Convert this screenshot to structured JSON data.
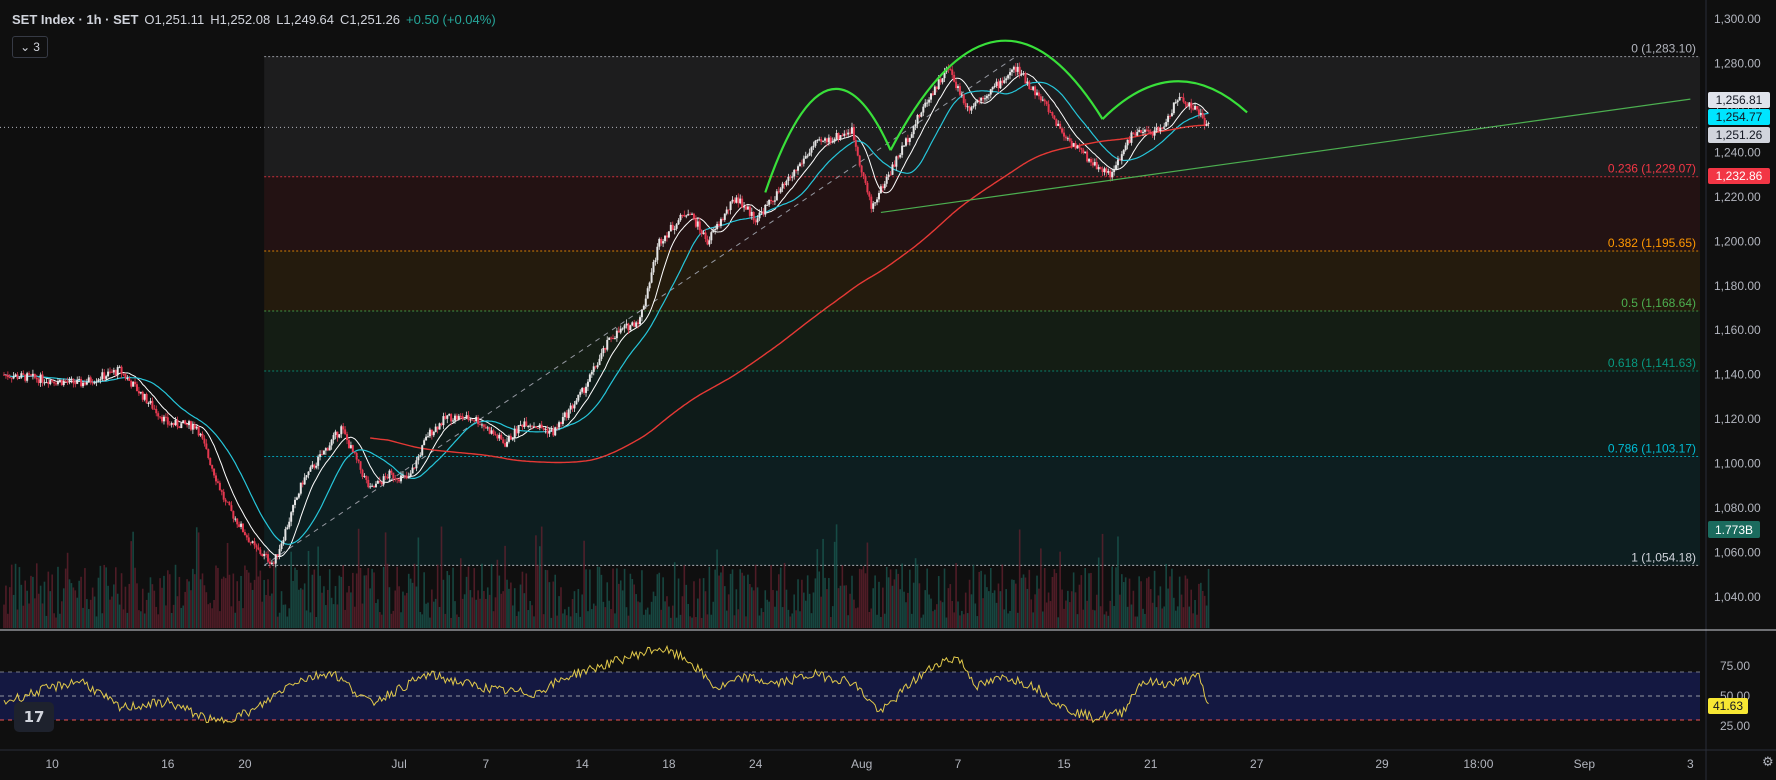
{
  "header": {
    "symbol": "SET Index · 1h · SET",
    "open": "O1,251.11",
    "high": "H1,252.08",
    "low": "L1,249.64",
    "close": "C1,251.26",
    "change": "+0.50 (+0.04%)",
    "indicator_count": "3"
  },
  "chart_data": {
    "type": "candlestick",
    "title": "SET Index · 1h · SET",
    "price_axis": {
      "range": [
        1026,
        1305
      ],
      "ticks": [
        "1,300.00",
        "1,280.00",
        "1,260.00",
        "1,240.00",
        "1,220.00",
        "1,200.00",
        "1,180.00",
        "1,160.00",
        "1,140.00",
        "1,120.00",
        "1,100.00",
        "1,080.00",
        "1,060.00",
        "1,040.00"
      ],
      "tick_values": [
        1300,
        1280,
        1260,
        1240,
        1220,
        1200,
        1180,
        1160,
        1140,
        1120,
        1100,
        1080,
        1060,
        1040
      ]
    },
    "time_axis": {
      "labels": [
        "10",
        "16",
        "20",
        "Jul",
        "7",
        "14",
        "18",
        "24",
        "Aug",
        "7",
        "15",
        "21",
        "27",
        "29",
        "18:00",
        "Sep",
        "3"
      ],
      "label_index": [
        5,
        17,
        25,
        41,
        50,
        60,
        69,
        78,
        89,
        99,
        110,
        119,
        130,
        143,
        153,
        164,
        175
      ],
      "total_index": 176,
      "last_bar_index": 125
    },
    "key_points": [
      {
        "i": 0,
        "p": 1140
      },
      {
        "i": 8,
        "p": 1136
      },
      {
        "i": 12,
        "p": 1142
      },
      {
        "i": 17,
        "p": 1118
      },
      {
        "i": 20,
        "p": 1117
      },
      {
        "i": 23,
        "p": 1082
      },
      {
        "i": 26,
        "p": 1062
      },
      {
        "i": 28,
        "p": 1055
      },
      {
        "i": 31,
        "p": 1092
      },
      {
        "i": 35,
        "p": 1116
      },
      {
        "i": 38,
        "p": 1088
      },
      {
        "i": 40,
        "p": 1095
      },
      {
        "i": 42,
        "p": 1093
      },
      {
        "i": 44,
        "p": 1113
      },
      {
        "i": 46,
        "p": 1121
      },
      {
        "i": 49,
        "p": 1120
      },
      {
        "i": 52,
        "p": 1109
      },
      {
        "i": 54,
        "p": 1119
      },
      {
        "i": 57,
        "p": 1114
      },
      {
        "i": 60,
        "p": 1132
      },
      {
        "i": 63,
        "p": 1157
      },
      {
        "i": 66,
        "p": 1165
      },
      {
        "i": 68,
        "p": 1200
      },
      {
        "i": 71,
        "p": 1214
      },
      {
        "i": 73,
        "p": 1200
      },
      {
        "i": 76,
        "p": 1220
      },
      {
        "i": 78,
        "p": 1210
      },
      {
        "i": 81,
        "p": 1225
      },
      {
        "i": 84,
        "p": 1243
      },
      {
        "i": 88,
        "p": 1250
      },
      {
        "i": 90,
        "p": 1215
      },
      {
        "i": 93,
        "p": 1240
      },
      {
        "i": 96,
        "p": 1265
      },
      {
        "i": 98,
        "p": 1278
      },
      {
        "i": 100,
        "p": 1260
      },
      {
        "i": 103,
        "p": 1270
      },
      {
        "i": 105,
        "p": 1278
      },
      {
        "i": 108,
        "p": 1262
      },
      {
        "i": 110,
        "p": 1248
      },
      {
        "i": 113,
        "p": 1235
      },
      {
        "i": 115,
        "p": 1230
      },
      {
        "i": 117,
        "p": 1248
      },
      {
        "i": 120,
        "p": 1250
      },
      {
        "i": 122,
        "p": 1265
      },
      {
        "i": 124,
        "p": 1258
      },
      {
        "i": 125,
        "p": 1251.26
      }
    ],
    "fibonacci": {
      "start_index": 27,
      "levels": [
        {
          "label": "0 (1,283.10)",
          "value": 1283.1,
          "color": "#b2b5be"
        },
        {
          "label": "0.236 (1,229.07)",
          "value": 1229.07,
          "color": "#f23645"
        },
        {
          "label": "0.382 (1,195.65)",
          "value": 1195.65,
          "color": "#ff9800"
        },
        {
          "label": "0.5 (1,168.64)",
          "value": 1168.64,
          "color": "#4caf50"
        },
        {
          "label": "0.618 (1,141.63)",
          "value": 1141.63,
          "color": "#089981"
        },
        {
          "label": "0.786 (1,103.17)",
          "value": 1103.17,
          "color": "#00bcd4"
        },
        {
          "label": "1 (1,054.18)",
          "value": 1054.18,
          "color": "#d1d4dc"
        }
      ]
    },
    "price_badges": [
      {
        "label": "1,256.81",
        "value": 1256.81,
        "bg": "#e0e3eb",
        "fg": "#131722"
      },
      {
        "label": "1,254.77",
        "value": 1254.77,
        "bg": "#00e5ff",
        "fg": "#131722"
      },
      {
        "label": "1,251.26",
        "value": 1251.26,
        "bg": "#d1d4dc",
        "fg": "#131722"
      },
      {
        "label": "1,232.86",
        "value": 1232.86,
        "bg": "#f23645",
        "fg": "#ffffff"
      }
    ],
    "volume_badge": {
      "label": "1.773B",
      "bg": "#1b6b5e",
      "fg": "#ffffff"
    },
    "trendline": {
      "from": {
        "i": 91,
        "p": 1213
      },
      "to": {
        "i": 175,
        "p": 1264
      },
      "color": "#4caf50"
    },
    "pattern_arcs": [
      {
        "from": {
          "i": 79,
          "p": 1222
        },
        "to": {
          "i": 92,
          "p": 1241
        },
        "peak": 1268
      },
      {
        "from": {
          "i": 92,
          "p": 1241
        },
        "to": {
          "i": 114,
          "p": 1255
        },
        "peak": 1290
      },
      {
        "from": {
          "i": 114,
          "p": 1255
        },
        "to": {
          "i": 129,
          "p": 1258
        },
        "peak": 1272
      }
    ],
    "rsi": {
      "ticks": [
        "75.00",
        "50.00",
        "25.00"
      ],
      "tick_values": [
        75,
        50,
        25
      ],
      "upper": 70,
      "lower": 30,
      "mid": 50,
      "current": "41.63",
      "points": [
        {
          "i": 0,
          "v": 45
        },
        {
          "i": 4,
          "v": 55
        },
        {
          "i": 8,
          "v": 63
        },
        {
          "i": 12,
          "v": 40
        },
        {
          "i": 17,
          "v": 45
        },
        {
          "i": 22,
          "v": 28
        },
        {
          "i": 26,
          "v": 38
        },
        {
          "i": 30,
          "v": 62
        },
        {
          "i": 34,
          "v": 70
        },
        {
          "i": 38,
          "v": 44
        },
        {
          "i": 41,
          "v": 56
        },
        {
          "i": 44,
          "v": 68
        },
        {
          "i": 47,
          "v": 62
        },
        {
          "i": 51,
          "v": 55
        },
        {
          "i": 55,
          "v": 52
        },
        {
          "i": 59,
          "v": 68
        },
        {
          "i": 62,
          "v": 75
        },
        {
          "i": 65,
          "v": 83
        },
        {
          "i": 68,
          "v": 90
        },
        {
          "i": 71,
          "v": 80
        },
        {
          "i": 74,
          "v": 56
        },
        {
          "i": 77,
          "v": 66
        },
        {
          "i": 80,
          "v": 60
        },
        {
          "i": 84,
          "v": 68
        },
        {
          "i": 88,
          "v": 62
        },
        {
          "i": 91,
          "v": 36
        },
        {
          "i": 94,
          "v": 60
        },
        {
          "i": 97,
          "v": 78
        },
        {
          "i": 99,
          "v": 82
        },
        {
          "i": 101,
          "v": 58
        },
        {
          "i": 104,
          "v": 66
        },
        {
          "i": 107,
          "v": 58
        },
        {
          "i": 110,
          "v": 40
        },
        {
          "i": 113,
          "v": 32
        },
        {
          "i": 116,
          "v": 36
        },
        {
          "i": 118,
          "v": 62
        },
        {
          "i": 121,
          "v": 60
        },
        {
          "i": 124,
          "v": 66
        },
        {
          "i": 125,
          "v": 41.63
        }
      ]
    }
  }
}
